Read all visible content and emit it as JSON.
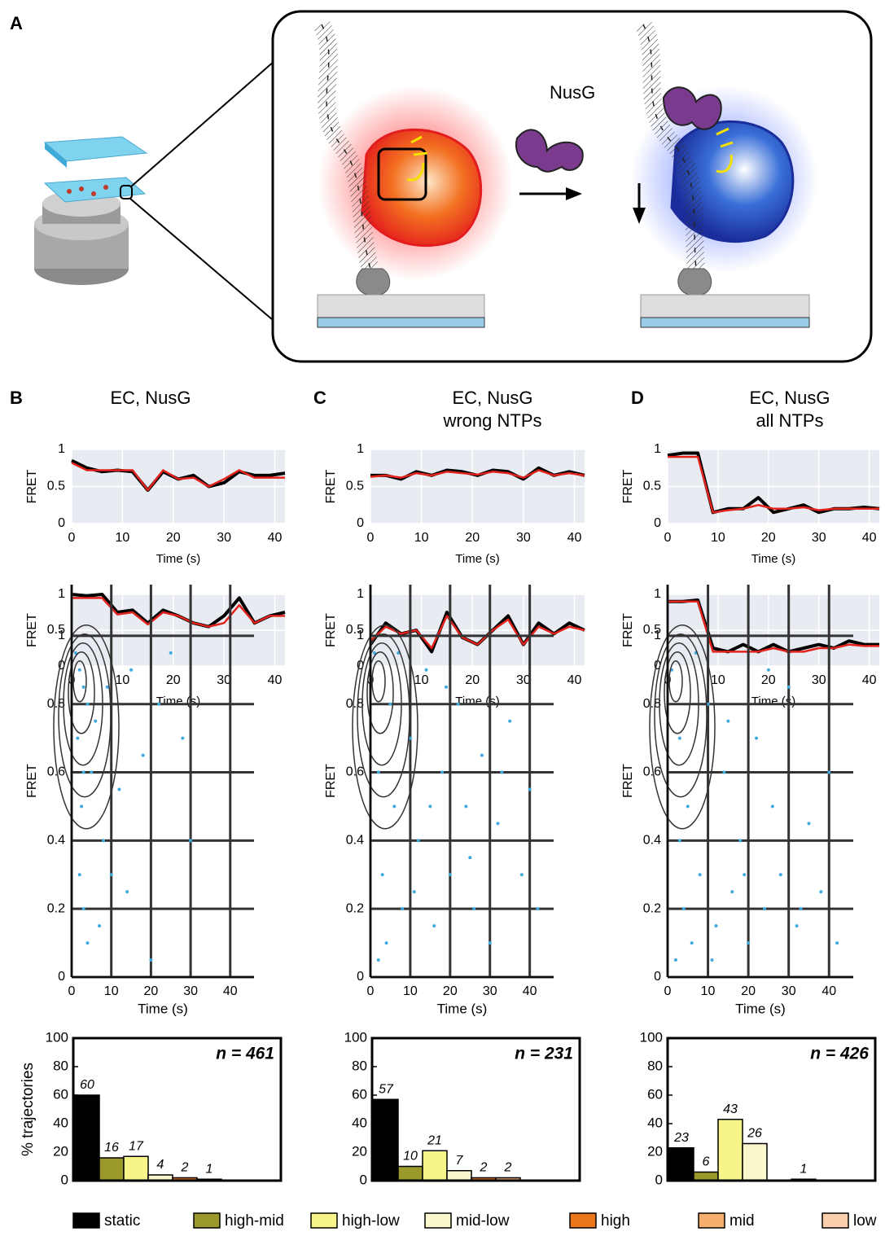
{
  "panel_a": {
    "label": "A",
    "protein_label": "NusG"
  },
  "panels": [
    {
      "label": "B",
      "title": [
        "EC, NusG"
      ]
    },
    {
      "label": "C",
      "title": [
        "EC, NusG",
        "wrong NTPs"
      ]
    },
    {
      "label": "D",
      "title": [
        "EC, NusG",
        "all NTPs"
      ]
    }
  ],
  "chart_data": [
    {
      "type": "line",
      "xlabel": "Time (s)",
      "ylabel": "FRET",
      "xlim": [
        0,
        42
      ],
      "ylim": [
        0,
        1
      ],
      "xticks": [
        0,
        10,
        20,
        30,
        40
      ],
      "yticks": [
        0,
        0.5,
        1
      ],
      "x": [
        0,
        3,
        6,
        9,
        12,
        15,
        18,
        21,
        24,
        27,
        30,
        33,
        36,
        39,
        42
      ],
      "series": [
        {
          "color": "#000000",
          "values": [
            0.85,
            0.75,
            0.7,
            0.72,
            0.7,
            0.45,
            0.7,
            0.6,
            0.65,
            0.5,
            0.55,
            0.7,
            0.65,
            0.65,
            0.68
          ]
        },
        {
          "color": "#e3231c",
          "values": [
            0.82,
            0.72,
            0.72,
            0.72,
            0.72,
            0.45,
            0.72,
            0.6,
            0.62,
            0.5,
            0.6,
            0.72,
            0.62,
            0.62,
            0.62
          ]
        }
      ]
    },
    {
      "type": "line",
      "xlabel": "Time (s)",
      "ylabel": "FRET",
      "xlim": [
        0,
        42
      ],
      "ylim": [
        0,
        1
      ],
      "xticks": [
        0,
        10,
        20,
        30,
        40
      ],
      "yticks": [
        0,
        0.5,
        1
      ],
      "x": [
        0,
        3,
        6,
        9,
        12,
        15,
        18,
        21,
        24,
        27,
        30,
        33,
        36,
        39,
        42
      ],
      "series": [
        {
          "color": "#000000",
          "values": [
            0.65,
            0.65,
            0.6,
            0.7,
            0.65,
            0.72,
            0.7,
            0.65,
            0.72,
            0.7,
            0.6,
            0.75,
            0.65,
            0.7,
            0.65
          ]
        },
        {
          "color": "#e3231c",
          "values": [
            0.63,
            0.65,
            0.62,
            0.68,
            0.65,
            0.7,
            0.68,
            0.66,
            0.7,
            0.68,
            0.62,
            0.72,
            0.65,
            0.68,
            0.65
          ]
        }
      ]
    },
    {
      "type": "line",
      "xlabel": "Time (s)",
      "ylabel": "FRET",
      "xlim": [
        0,
        42
      ],
      "ylim": [
        0,
        1
      ],
      "xticks": [
        0,
        10,
        20,
        30,
        40
      ],
      "yticks": [
        0,
        0.5,
        1
      ],
      "x": [
        0,
        3,
        6,
        9,
        12,
        15,
        18,
        21,
        24,
        27,
        30,
        33,
        36,
        39,
        42
      ],
      "series": [
        {
          "color": "#000000",
          "values": [
            0.92,
            0.95,
            0.95,
            0.15,
            0.2,
            0.2,
            0.35,
            0.15,
            0.2,
            0.25,
            0.15,
            0.2,
            0.2,
            0.22,
            0.2
          ]
        },
        {
          "color": "#e3231c",
          "values": [
            0.9,
            0.9,
            0.9,
            0.15,
            0.18,
            0.2,
            0.25,
            0.2,
            0.2,
            0.22,
            0.18,
            0.2,
            0.2,
            0.2,
            0.2
          ]
        }
      ]
    },
    {
      "type": "line",
      "xlabel": "Time (s)",
      "ylabel": "FRET",
      "xlim": [
        0,
        42
      ],
      "ylim": [
        0,
        1
      ],
      "xticks": [
        0,
        10,
        20,
        30,
        40
      ],
      "yticks": [
        0,
        0.5,
        1
      ],
      "x": [
        0,
        3,
        6,
        9,
        12,
        15,
        18,
        21,
        24,
        27,
        30,
        33,
        36,
        39,
        42
      ],
      "series": [
        {
          "color": "#000000",
          "values": [
            1,
            0.98,
            1,
            0.75,
            0.78,
            0.6,
            0.78,
            0.7,
            0.6,
            0.55,
            0.7,
            0.95,
            0.6,
            0.7,
            0.75
          ]
        },
        {
          "color": "#e3231c",
          "values": [
            0.95,
            0.95,
            0.95,
            0.72,
            0.75,
            0.58,
            0.75,
            0.7,
            0.6,
            0.55,
            0.6,
            0.85,
            0.6,
            0.7,
            0.7
          ]
        }
      ]
    },
    {
      "type": "line",
      "xlabel": "Time (s)",
      "ylabel": "FRET",
      "xlim": [
        0,
        42
      ],
      "ylim": [
        0,
        1
      ],
      "xticks": [
        0,
        10,
        20,
        30,
        40
      ],
      "yticks": [
        0,
        0.5,
        1
      ],
      "x": [
        0,
        3,
        6,
        9,
        12,
        15,
        18,
        21,
        24,
        27,
        30,
        33,
        36,
        39,
        42
      ],
      "series": [
        {
          "color": "#000000",
          "values": [
            0.3,
            0.6,
            0.45,
            0.5,
            0.2,
            0.75,
            0.4,
            0.3,
            0.5,
            0.7,
            0.3,
            0.6,
            0.45,
            0.6,
            0.5
          ]
        },
        {
          "color": "#e3231c",
          "values": [
            0.35,
            0.55,
            0.45,
            0.5,
            0.25,
            0.7,
            0.4,
            0.3,
            0.5,
            0.65,
            0.3,
            0.55,
            0.45,
            0.55,
            0.5
          ]
        }
      ]
    },
    {
      "type": "line",
      "xlabel": "Time (s)",
      "ylabel": "FRET",
      "xlim": [
        0,
        42
      ],
      "ylim": [
        0,
        1
      ],
      "xticks": [
        0,
        10,
        20,
        30,
        40
      ],
      "yticks": [
        0,
        0.5,
        1
      ],
      "x": [
        0,
        3,
        6,
        9,
        12,
        15,
        18,
        21,
        24,
        27,
        30,
        33,
        36,
        39,
        42
      ],
      "series": [
        {
          "color": "#000000",
          "values": [
            0.9,
            0.9,
            0.92,
            0.25,
            0.2,
            0.3,
            0.2,
            0.3,
            0.2,
            0.25,
            0.3,
            0.25,
            0.35,
            0.3,
            0.3
          ]
        },
        {
          "color": "#e3231c",
          "values": [
            0.9,
            0.9,
            0.9,
            0.2,
            0.2,
            0.2,
            0.2,
            0.25,
            0.2,
            0.2,
            0.25,
            0.25,
            0.3,
            0.28,
            0.28
          ]
        }
      ]
    },
    {
      "type": "scatter",
      "xlabel": "Time (s)",
      "ylabel": "FRET",
      "xlim": [
        0,
        46
      ],
      "ylim": [
        0,
        1.15
      ],
      "xticks": [
        0,
        10,
        20,
        30,
        40
      ],
      "yticks": [
        0,
        0.2,
        0.4,
        0.6,
        0.8,
        1
      ],
      "color": "#3fa9e0",
      "x": [
        1,
        2,
        3,
        1.5,
        4,
        5,
        2.5,
        6,
        8,
        3,
        10,
        12,
        15,
        18,
        22,
        25,
        28,
        30,
        4,
        7,
        2,
        9,
        14,
        20,
        3
      ],
      "values": [
        0.95,
        0.9,
        0.85,
        0.7,
        0.8,
        0.6,
        0.5,
        0.75,
        0.4,
        0.2,
        0.3,
        0.55,
        0.9,
        0.65,
        0.8,
        0.95,
        0.7,
        0.4,
        0.1,
        0.15,
        0.3,
        0.85,
        0.25,
        0.05,
        0.6
      ]
    },
    {
      "type": "scatter",
      "xlabel": "Time (s)",
      "ylabel": "FRET",
      "xlim": [
        0,
        46
      ],
      "ylim": [
        0,
        1.15
      ],
      "xticks": [
        0,
        10,
        20,
        30,
        40
      ],
      "yticks": [
        0,
        0.2,
        0.4,
        0.6,
        0.8,
        1
      ],
      "color": "#3fa9e0",
      "x": [
        1,
        2,
        3,
        4,
        5,
        6,
        8,
        10,
        12,
        14,
        16,
        18,
        20,
        22,
        24,
        26,
        28,
        30,
        32,
        35,
        38,
        40,
        42,
        2,
        7,
        11,
        15,
        19,
        25,
        33
      ],
      "values": [
        0.95,
        0.6,
        0.3,
        0.1,
        0.8,
        0.5,
        0.2,
        0.7,
        0.4,
        0.9,
        0.15,
        0.6,
        0.3,
        0.8,
        0.5,
        0.2,
        0.65,
        0.1,
        0.45,
        0.75,
        0.3,
        0.55,
        0.2,
        0.05,
        0.95,
        0.25,
        0.5,
        0.85,
        0.35,
        0.6
      ]
    },
    {
      "type": "scatter",
      "xlabel": "Time (s)",
      "ylabel": "FRET",
      "xlim": [
        0,
        46
      ],
      "ylim": [
        0,
        1.15
      ],
      "xticks": [
        0,
        10,
        20,
        30,
        40
      ],
      "yticks": [
        0,
        0.2,
        0.4,
        0.6,
        0.8,
        1
      ],
      "color": "#3fa9e0",
      "x": [
        1,
        2,
        3,
        4,
        5,
        6,
        8,
        10,
        12,
        14,
        16,
        18,
        20,
        22,
        24,
        26,
        28,
        30,
        32,
        35,
        38,
        40,
        42,
        3,
        7,
        11,
        15,
        19,
        25,
        33
      ],
      "values": [
        0.9,
        0.05,
        0.7,
        0.2,
        0.5,
        0.1,
        0.3,
        0.8,
        0.15,
        0.6,
        0.25,
        0.4,
        0.1,
        0.7,
        0.2,
        0.5,
        0.3,
        0.85,
        0.15,
        0.45,
        0.25,
        0.6,
        0.1,
        0.4,
        0.95,
        0.05,
        0.75,
        0.3,
        0.9,
        0.2
      ]
    },
    {
      "type": "bar",
      "ylabel": "% trajectories",
      "annotation": "n = 461",
      "ylim": [
        0,
        100
      ],
      "yticks": [
        0,
        20,
        40,
        60,
        80,
        100
      ],
      "values": [
        60,
        16,
        17,
        4,
        2,
        1
      ]
    },
    {
      "type": "bar",
      "annotation": "n = 231",
      "ylim": [
        0,
        100
      ],
      "yticks": [
        0,
        20,
        40,
        60,
        80,
        100
      ],
      "values": [
        57,
        10,
        21,
        7,
        2,
        2
      ]
    },
    {
      "type": "bar",
      "annotation": "n = 426",
      "ylim": [
        0,
        100
      ],
      "yticks": [
        0,
        20,
        40,
        60,
        80,
        100
      ],
      "values": [
        23,
        6,
        43,
        26,
        null,
        1
      ]
    }
  ],
  "legend": [
    {
      "name": "static",
      "color": "#000000"
    },
    {
      "name": "high-mid",
      "color": "#9a9a2a"
    },
    {
      "name": "high-low",
      "color": "#f5f58a"
    },
    {
      "name": "mid-low",
      "color": "#fbf7cc"
    },
    {
      "name": "high",
      "color": "#e8761c"
    },
    {
      "name": "mid",
      "color": "#f6ae6e"
    },
    {
      "name": "low",
      "color": "#fbcfae"
    }
  ]
}
